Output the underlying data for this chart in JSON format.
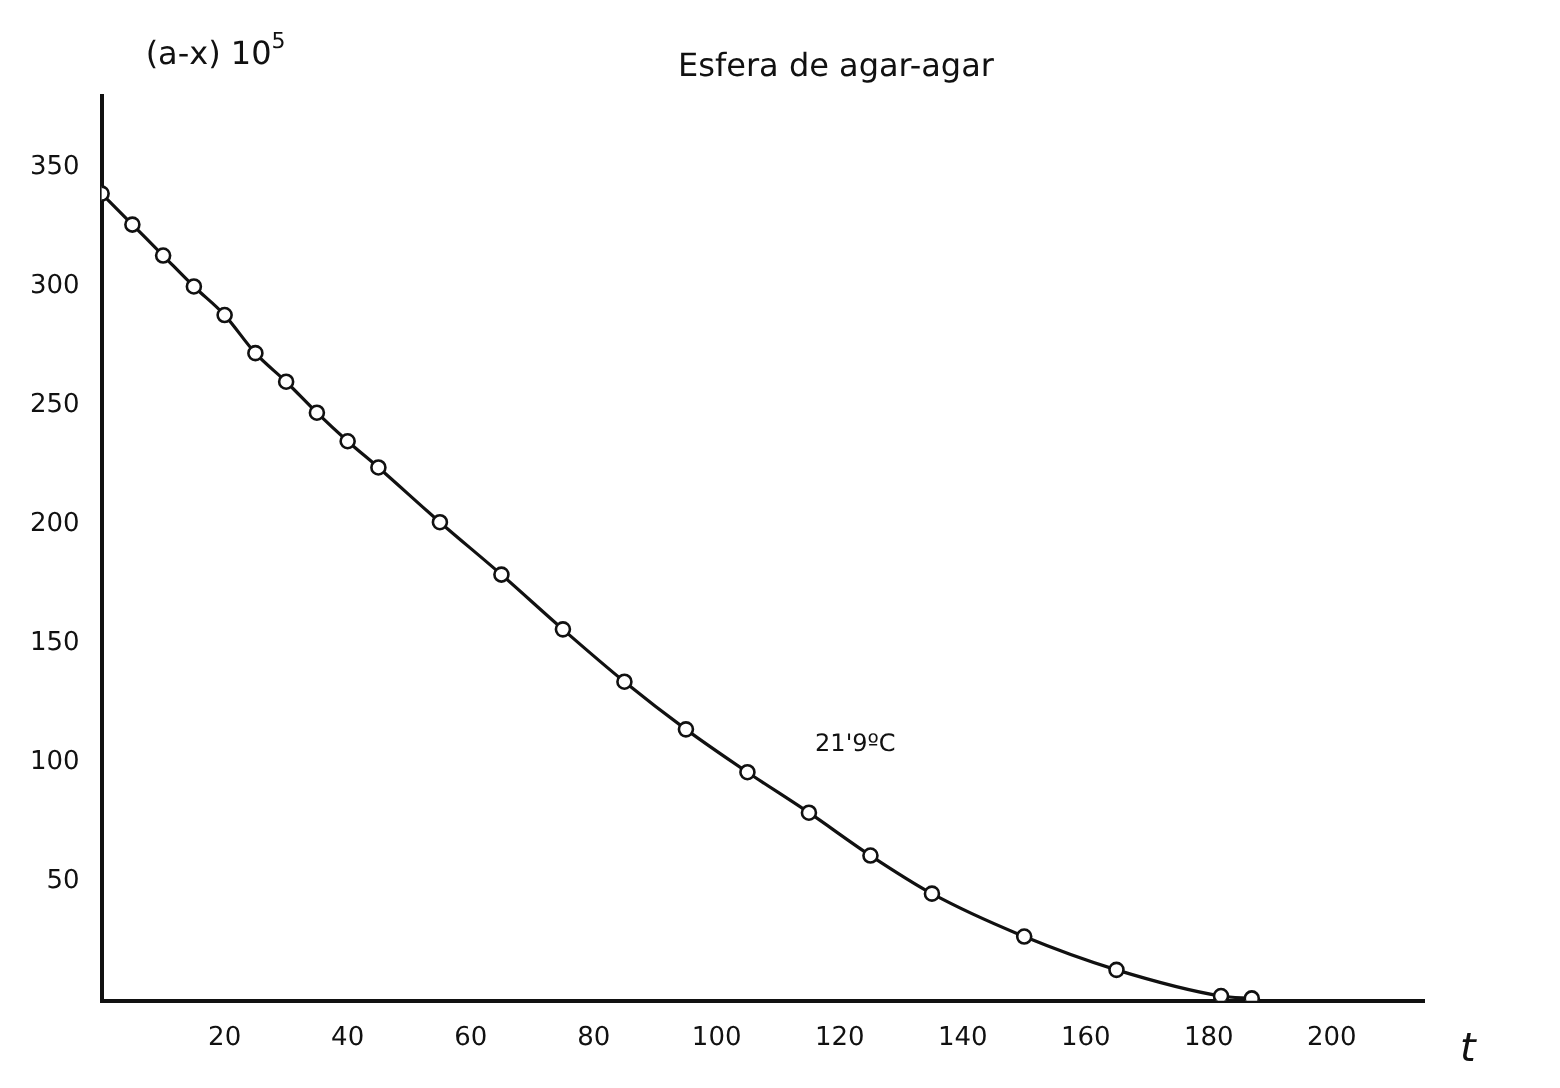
{
  "chart_data": {
    "type": "line",
    "title": "Esfera de agar-agar",
    "xlabel": "t",
    "ylabel": "(a-x) 10$^{5}$",
    "annotations": [
      "21'9ºC"
    ],
    "x": [
      0,
      5,
      10,
      15,
      20,
      25,
      30,
      35,
      40,
      45,
      55,
      65,
      75,
      85,
      95,
      105,
      115,
      125,
      135,
      150,
      165,
      182,
      187
    ],
    "series": [
      {
        "color": "#111111",
        "values": [
          339,
          326,
          313,
          300,
          288,
          272,
          260,
          247,
          235,
          224,
          201,
          179,
          156,
          134,
          114,
          96,
          79,
          61,
          45,
          27,
          13,
          2,
          1
        ]
      }
    ],
    "xlim": [
      0,
      215
    ],
    "ylim": [
      0,
      380
    ],
    "xticks": [
      20,
      40,
      60,
      80,
      100,
      120,
      140,
      160,
      180,
      200
    ],
    "yticks": [
      50,
      100,
      150,
      200,
      250,
      300,
      350
    ],
    "marker": "circle",
    "line_style": "solid",
    "grid": false,
    "legend": false
  }
}
